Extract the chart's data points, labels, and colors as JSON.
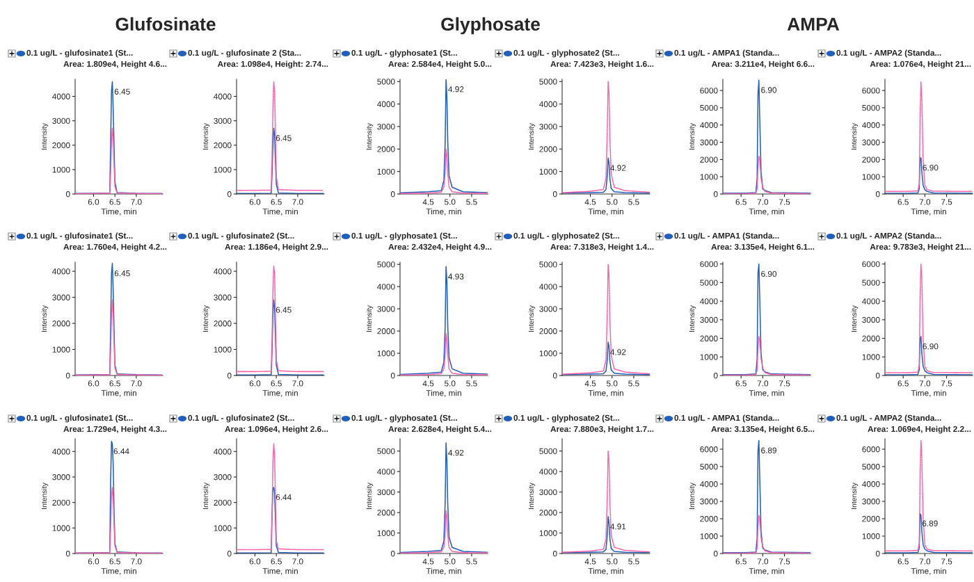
{
  "chart_data": [
    {
      "type": "line",
      "title": "0.1 ug/L - glufosinate1 (St...",
      "subtitle": "Area: 1.809e4, Height 4.6...",
      "xlabel": "Time, min",
      "ylabel": "Intensity",
      "xlim": [
        5.57,
        7.62
      ],
      "xticks": [
        {
          "value": 6.0,
          "label": "6.0"
        },
        {
          "value": 6.5,
          "label": "6.5"
        },
        {
          "value": 7.0,
          "label": "7.0"
        }
      ],
      "ylim": [
        0,
        4700
      ],
      "yticks": [
        0,
        1000,
        2000,
        3000,
        4000
      ],
      "grid": false,
      "series": [
        {
          "color": "#1f5fbf",
          "line_style": "solid",
          "x": [
            5.58,
            6.0,
            6.38,
            6.4,
            6.42,
            6.44,
            6.46,
            6.48,
            6.5,
            6.55,
            7.0,
            7.6
          ],
          "values": [
            20,
            30,
            40,
            2050,
            4200,
            4600,
            3500,
            2000,
            500,
            60,
            30,
            20
          ]
        },
        {
          "color": "#ff5fa8",
          "line_style": "dotted",
          "x": [
            5.58,
            6.0,
            6.38,
            6.4,
            6.42,
            6.44,
            6.46,
            6.48,
            6.5,
            6.55,
            7.0,
            7.6
          ],
          "values": [
            10,
            20,
            30,
            800,
            2000,
            2700,
            2300,
            1200,
            300,
            40,
            20,
            10
          ]
        }
      ],
      "annotations": [
        "Glufosinate",
        {
          "text": "6.45",
          "x": 6.44,
          "y": 4600
        }
      ]
    },
    {
      "type": "line",
      "title": "0.1 ug/L - glufosinate 2 (Sta...",
      "subtitle": "Area: 1.098e4, Height: 2.74...",
      "xlabel": "Time, min",
      "ylabel": "Intensity",
      "xlim": [
        5.57,
        7.62
      ],
      "xticks": [
        {
          "value": 6.0,
          "label": "6.0"
        },
        {
          "value": 6.5,
          "label": "6.5"
        },
        {
          "value": 7.0,
          "label": "7.0"
        }
      ],
      "ylim": [
        0,
        4700
      ],
      "yticks": [
        0,
        1000,
        2000,
        3000,
        4000
      ],
      "grid": false,
      "series": [
        {
          "color": "#1f5fbf",
          "line_style": "solid",
          "x": [
            5.58,
            6.0,
            6.38,
            6.4,
            6.42,
            6.44,
            6.46,
            6.48,
            6.5,
            6.55,
            7.0,
            7.6
          ],
          "values": [
            20,
            20,
            30,
            800,
            2000,
            2700,
            2400,
            1300,
            400,
            40,
            20,
            20
          ]
        },
        {
          "color": "#ff5fa8",
          "line_style": "dotted",
          "x": [
            5.58,
            6.0,
            6.38,
            6.4,
            6.42,
            6.44,
            6.46,
            6.48,
            6.5,
            6.55,
            7.0,
            7.6
          ],
          "values": [
            150,
            150,
            160,
            1500,
            3500,
            4600,
            4200,
            2500,
            700,
            180,
            150,
            150
          ]
        }
      ],
      "annotations": [
        {
          "text": "6.45",
          "x": 6.44,
          "y": 2700
        }
      ]
    },
    {
      "type": "line",
      "title": "0.1 ug/L - glyphosate1 (St...",
      "subtitle": "Area: 2.584e4, Height 5.0...",
      "xlabel": "Time, min",
      "ylabel": "Intensity",
      "xlim": [
        3.85,
        5.87
      ],
      "xticks": [
        {
          "value": 4.5,
          "label": "4.5"
        },
        {
          "value": 5.0,
          "label": "5.0"
        },
        {
          "value": 5.5,
          "label": "5.5"
        }
      ],
      "ylim": [
        0,
        5100
      ],
      "yticks": [
        0,
        1000,
        2000,
        3000,
        4000,
        5000
      ],
      "grid": false,
      "series": [
        {
          "color": "#1f5fbf",
          "line_style": "solid",
          "x": [
            3.86,
            4.5,
            4.8,
            4.86,
            4.89,
            4.91,
            4.93,
            4.95,
            4.98,
            5.05,
            5.3,
            5.86
          ],
          "values": [
            50,
            100,
            150,
            600,
            2300,
            5100,
            4300,
            2300,
            800,
            300,
            100,
            60
          ]
        },
        {
          "color": "#ff5fa8",
          "line_style": "dotted",
          "x": [
            3.86,
            4.5,
            4.8,
            4.86,
            4.89,
            4.91,
            4.93,
            4.95,
            4.98,
            5.05,
            5.3,
            5.86
          ],
          "values": [
            20,
            40,
            80,
            300,
            900,
            2000,
            1700,
            900,
            300,
            100,
            40,
            30
          ]
        }
      ],
      "annotations": [
        "Glyphosate",
        {
          "text": "4.92",
          "x": 4.91,
          "y": 5100
        }
      ]
    },
    {
      "type": "line",
      "title": "0.1 ug/L - glyphosate2 (St...",
      "subtitle": "Area: 7.423e3, Height 1.6...",
      "xlabel": "Time, min",
      "ylabel": "Intensity",
      "xlim": [
        3.85,
        5.87
      ],
      "xticks": [
        {
          "value": 4.5,
          "label": "4.5"
        },
        {
          "value": 5.0,
          "label": "5.0"
        },
        {
          "value": 5.5,
          "label": "5.5"
        }
      ],
      "ylim": [
        0,
        5100
      ],
      "yticks": [
        0,
        1000,
        2000,
        3000,
        4000,
        5000
      ],
      "grid": false,
      "series": [
        {
          "color": "#1f5fbf",
          "line_style": "solid",
          "x": [
            3.86,
            4.5,
            4.8,
            4.86,
            4.89,
            4.91,
            4.93,
            4.95,
            4.98,
            5.05,
            5.3,
            5.86
          ],
          "values": [
            40,
            60,
            80,
            200,
            800,
            1600,
            1400,
            700,
            250,
            100,
            60,
            40
          ]
        },
        {
          "color": "#ff5fa8",
          "line_style": "dotted",
          "x": [
            3.86,
            4.5,
            4.8,
            4.86,
            4.89,
            4.91,
            4.93,
            4.95,
            4.98,
            5.05,
            5.3,
            5.86
          ],
          "values": [
            60,
            120,
            200,
            700,
            2800,
            5000,
            4500,
            2500,
            900,
            300,
            150,
            80
          ]
        }
      ],
      "annotations": [
        {
          "text": "4.92",
          "x": 4.91,
          "y": 1600
        }
      ]
    },
    {
      "type": "line",
      "title": "0.1 ug/L - AMPA1 (Standa...",
      "subtitle": "Area: 3.211e4, Height 6.6...",
      "xlabel": "Time, min",
      "ylabel": "Intensity",
      "xlim": [
        6.08,
        8.1
      ],
      "xticks": [
        {
          "value": 6.5,
          "label": "6.5"
        },
        {
          "value": 7.0,
          "label": "7.0"
        },
        {
          "value": 7.5,
          "label": "7.5"
        }
      ],
      "ylim": [
        0,
        6650
      ],
      "yticks": [
        0,
        1000,
        2000,
        3000,
        4000,
        5000,
        6000
      ],
      "grid": false,
      "series": [
        {
          "color": "#1f5fbf",
          "line_style": "solid",
          "x": [
            6.09,
            6.6,
            6.84,
            6.87,
            6.89,
            6.91,
            6.93,
            6.96,
            7.0,
            7.05,
            7.2,
            8.09
          ],
          "values": [
            50,
            50,
            80,
            900,
            5800,
            6600,
            4400,
            1300,
            300,
            200,
            80,
            50
          ]
        },
        {
          "color": "#ff5fa8",
          "line_style": "dotted",
          "x": [
            6.09,
            6.6,
            6.84,
            6.87,
            6.89,
            6.91,
            6.93,
            6.96,
            7.0,
            7.05,
            7.2,
            8.09
          ],
          "values": [
            20,
            20,
            40,
            300,
            1500,
            2200,
            2000,
            900,
            400,
            150,
            50,
            20
          ]
        }
      ],
      "annotations": [
        "AMPA",
        {
          "text": "6.90",
          "x": 6.91,
          "y": 6600
        }
      ]
    },
    {
      "type": "line",
      "title": "0.1 ug/L - AMPA2 (Standa...",
      "subtitle": "Area: 1.076e4, Height 21...",
      "xlabel": "Time, min",
      "ylabel": "Intensity",
      "xlim": [
        6.08,
        8.1
      ],
      "xticks": [
        {
          "value": 6.5,
          "label": "6.5"
        },
        {
          "value": 7.0,
          "label": "7.0"
        },
        {
          "value": 7.5,
          "label": "7.5"
        }
      ],
      "ylim": [
        0,
        6650
      ],
      "yticks": [
        0,
        1000,
        2000,
        3000,
        4000,
        5000,
        6000
      ],
      "grid": false,
      "series": [
        {
          "color": "#1f5fbf",
          "line_style": "solid",
          "x": [
            6.09,
            6.6,
            6.84,
            6.87,
            6.89,
            6.91,
            6.93,
            6.96,
            7.0,
            7.05,
            7.2,
            8.09
          ],
          "values": [
            40,
            40,
            60,
            300,
            2100,
            2100,
            1300,
            500,
            250,
            150,
            60,
            40
          ]
        },
        {
          "color": "#ff5fa8",
          "line_style": "dotted",
          "x": [
            6.09,
            6.6,
            6.84,
            6.87,
            6.89,
            6.91,
            6.93,
            6.96,
            7.0,
            7.05,
            7.2,
            8.09
          ],
          "values": [
            150,
            150,
            180,
            600,
            4500,
            6500,
            5500,
            2000,
            500,
            250,
            160,
            150
          ]
        }
      ],
      "annotations": [
        {
          "text": "6.90",
          "x": 6.9,
          "y": 2100
        }
      ]
    },
    {
      "type": "line",
      "title": "0.1 ug/L - glufosinate1 (St...",
      "subtitle": "Area: 1.760e4, Height 4.2...",
      "xlabel": "Time, min",
      "ylabel": "Intensity",
      "xlim": [
        5.57,
        7.62
      ],
      "xticks": [
        {
          "value": 6.0,
          "label": "6.0"
        },
        {
          "value": 6.5,
          "label": "6.5"
        },
        {
          "value": 7.0,
          "label": "7.0"
        }
      ],
      "ylim": [
        0,
        4350
      ],
      "yticks": [
        0,
        1000,
        2000,
        3000,
        4000
      ],
      "grid": false,
      "series": [
        {
          "color": "#1f5fbf",
          "line_style": "solid",
          "x": [
            5.58,
            6.0,
            6.38,
            6.4,
            6.42,
            6.44,
            6.46,
            6.48,
            6.5,
            6.55,
            7.0,
            7.6
          ],
          "values": [
            20,
            30,
            40,
            1800,
            3900,
            4300,
            3300,
            1800,
            400,
            60,
            30,
            20
          ]
        },
        {
          "color": "#ff5fa8",
          "line_style": "dotted",
          "x": [
            5.58,
            6.0,
            6.38,
            6.4,
            6.42,
            6.44,
            6.46,
            6.48,
            6.5,
            6.55,
            7.0,
            7.6
          ],
          "values": [
            10,
            20,
            30,
            900,
            2200,
            2900,
            2400,
            1200,
            300,
            40,
            20,
            10
          ]
        }
      ],
      "annotations": [
        {
          "text": "6.45",
          "x": 6.44,
          "y": 4300
        }
      ]
    },
    {
      "type": "line",
      "title": "0.1 ug/L - glufosinate2 (St...",
      "subtitle": "Area: 1.186e4, Height 2.9...",
      "xlabel": "Time, min",
      "ylabel": "Intensity",
      "xlim": [
        5.57,
        7.62
      ],
      "xticks": [
        {
          "value": 6.0,
          "label": "6.0"
        },
        {
          "value": 6.5,
          "label": "6.5"
        },
        {
          "value": 7.0,
          "label": "7.0"
        }
      ],
      "ylim": [
        0,
        4350
      ],
      "yticks": [
        0,
        1000,
        2000,
        3000,
        4000
      ],
      "grid": false,
      "series": [
        {
          "color": "#1f5fbf",
          "line_style": "solid",
          "x": [
            5.58,
            6.0,
            6.38,
            6.4,
            6.42,
            6.44,
            6.46,
            6.48,
            6.5,
            6.55,
            7.0,
            7.6
          ],
          "values": [
            20,
            20,
            30,
            900,
            2300,
            2900,
            2600,
            1400,
            400,
            40,
            20,
            20
          ]
        },
        {
          "color": "#ff5fa8",
          "line_style": "dotted",
          "x": [
            5.58,
            6.0,
            6.38,
            6.4,
            6.42,
            6.44,
            6.46,
            6.48,
            6.5,
            6.55,
            7.0,
            7.6
          ],
          "values": [
            150,
            150,
            160,
            1400,
            3300,
            4200,
            3900,
            2300,
            600,
            180,
            150,
            150
          ]
        }
      ],
      "annotations": [
        {
          "text": "6.45",
          "x": 6.44,
          "y": 2900
        }
      ]
    },
    {
      "type": "line",
      "title": "0.1 ug/L - glyphosate1 (St...",
      "subtitle": "Area: 2.432e4, Height 4.9...",
      "xlabel": "Time, min",
      "ylabel": "Intensity",
      "xlim": [
        3.85,
        5.87
      ],
      "xticks": [
        {
          "value": 4.5,
          "label": "4.5"
        },
        {
          "value": 5.0,
          "label": "5.0"
        },
        {
          "value": 5.5,
          "label": "5.5"
        }
      ],
      "ylim": [
        0,
        5100
      ],
      "yticks": [
        0,
        1000,
        2000,
        3000,
        4000,
        5000
      ],
      "grid": false,
      "series": [
        {
          "color": "#1f5fbf",
          "line_style": "solid",
          "x": [
            3.86,
            4.5,
            4.8,
            4.86,
            4.89,
            4.91,
            4.93,
            4.95,
            4.98,
            5.05,
            5.3,
            5.86
          ],
          "values": [
            50,
            100,
            150,
            600,
            2200,
            4900,
            4200,
            2200,
            800,
            300,
            100,
            60
          ]
        },
        {
          "color": "#ff5fa8",
          "line_style": "dotted",
          "x": [
            3.86,
            4.5,
            4.8,
            4.86,
            4.89,
            4.91,
            4.93,
            4.95,
            4.98,
            5.05,
            5.3,
            5.86
          ],
          "values": [
            20,
            40,
            80,
            300,
            900,
            1900,
            1600,
            900,
            300,
            100,
            40,
            30
          ]
        }
      ],
      "annotations": [
        {
          "text": "4.93",
          "x": 4.91,
          "y": 4900
        }
      ]
    },
    {
      "type": "line",
      "title": "0.1 ug/L - glyphosate2 (St...",
      "subtitle": "Area: 7.318e3, Height 1.4...",
      "xlabel": "Time, min",
      "ylabel": "Intensity",
      "xlim": [
        3.85,
        5.87
      ],
      "xticks": [
        {
          "value": 4.5,
          "label": "4.5"
        },
        {
          "value": 5.0,
          "label": "5.0"
        },
        {
          "value": 5.5,
          "label": "5.5"
        }
      ],
      "ylim": [
        0,
        5100
      ],
      "yticks": [
        0,
        1000,
        2000,
        3000,
        4000,
        5000
      ],
      "grid": false,
      "series": [
        {
          "color": "#1f5fbf",
          "line_style": "solid",
          "x": [
            3.86,
            4.5,
            4.8,
            4.86,
            4.89,
            4.91,
            4.93,
            4.95,
            4.98,
            5.05,
            5.3,
            5.86
          ],
          "values": [
            40,
            60,
            80,
            200,
            700,
            1500,
            1300,
            650,
            250,
            100,
            60,
            40
          ]
        },
        {
          "color": "#ff5fa8",
          "line_style": "dotted",
          "x": [
            3.86,
            4.5,
            4.8,
            4.86,
            4.89,
            4.91,
            4.93,
            4.95,
            4.98,
            5.05,
            5.3,
            5.86
          ],
          "values": [
            60,
            120,
            200,
            700,
            2800,
            5000,
            4500,
            2500,
            900,
            300,
            150,
            80
          ]
        }
      ],
      "annotations": [
        {
          "text": "4.92",
          "x": 4.91,
          "y": 1500
        }
      ]
    },
    {
      "type": "line",
      "title": "0.1 ug/L - AMPA1 (Standa...",
      "subtitle": "Area: 3.135e4, Height 6.1...",
      "xlabel": "Time, min",
      "ylabel": "Intensity",
      "xlim": [
        6.08,
        8.1
      ],
      "xticks": [
        {
          "value": 6.5,
          "label": "6.5"
        },
        {
          "value": 7.0,
          "label": "7.0"
        },
        {
          "value": 7.5,
          "label": "7.5"
        }
      ],
      "ylim": [
        0,
        6100
      ],
      "yticks": [
        0,
        1000,
        2000,
        3000,
        4000,
        5000,
        6000
      ],
      "grid": false,
      "series": [
        {
          "color": "#1f5fbf",
          "line_style": "solid",
          "x": [
            6.09,
            6.6,
            6.84,
            6.87,
            6.89,
            6.91,
            6.93,
            6.96,
            7.0,
            7.05,
            7.2,
            8.09
          ],
          "values": [
            50,
            50,
            80,
            900,
            5500,
            6000,
            4200,
            1200,
            300,
            200,
            80,
            50
          ]
        },
        {
          "color": "#ff5fa8",
          "line_style": "dotted",
          "x": [
            6.09,
            6.6,
            6.84,
            6.87,
            6.89,
            6.91,
            6.93,
            6.96,
            7.0,
            7.05,
            7.2,
            8.09
          ],
          "values": [
            20,
            20,
            40,
            300,
            1400,
            2100,
            1900,
            900,
            400,
            150,
            50,
            20
          ]
        }
      ],
      "annotations": [
        {
          "text": "6.90",
          "x": 6.91,
          "y": 6000
        }
      ]
    },
    {
      "type": "line",
      "title": "0.1 ug/L - AMPA2 (Standa...",
      "subtitle": "Area: 9.783e3, Height 21...",
      "xlabel": "Time, min",
      "ylabel": "Intensity",
      "xlim": [
        6.08,
        8.1
      ],
      "xticks": [
        {
          "value": 6.5,
          "label": "6.5"
        },
        {
          "value": 7.0,
          "label": "7.0"
        },
        {
          "value": 7.5,
          "label": "7.5"
        }
      ],
      "ylim": [
        0,
        6100
      ],
      "yticks": [
        0,
        1000,
        2000,
        3000,
        4000,
        5000,
        6000
      ],
      "grid": false,
      "series": [
        {
          "color": "#1f5fbf",
          "line_style": "solid",
          "x": [
            6.09,
            6.6,
            6.84,
            6.87,
            6.89,
            6.91,
            6.93,
            6.96,
            7.0,
            7.05,
            7.2,
            8.09
          ],
          "values": [
            40,
            40,
            60,
            300,
            2000,
            2100,
            1200,
            500,
            250,
            150,
            60,
            40
          ]
        },
        {
          "color": "#ff5fa8",
          "line_style": "dotted",
          "x": [
            6.09,
            6.6,
            6.84,
            6.87,
            6.89,
            6.91,
            6.93,
            6.96,
            7.0,
            7.05,
            7.2,
            8.09
          ],
          "values": [
            150,
            150,
            180,
            600,
            4200,
            6000,
            5200,
            1900,
            500,
            250,
            160,
            150
          ]
        }
      ],
      "annotations": [
        {
          "text": "6.90",
          "x": 6.9,
          "y": 2100
        }
      ]
    },
    {
      "type": "line",
      "title": "0.1 ug/L - glufosinate1 (St...",
      "subtitle": "Area: 1.729e4, Height 4.3...",
      "xlabel": "Time, min",
      "ylabel": "Intensity",
      "xlim": [
        5.57,
        7.62
      ],
      "xticks": [
        {
          "value": 6.0,
          "label": "6.0"
        },
        {
          "value": 6.5,
          "label": "6.5"
        },
        {
          "value": 7.0,
          "label": "7.0"
        }
      ],
      "ylim": [
        0,
        4500
      ],
      "yticks": [
        0,
        1000,
        2000,
        3000,
        4000
      ],
      "grid": false,
      "series": [
        {
          "color": "#1f5fbf",
          "line_style": "solid",
          "x": [
            5.58,
            6.0,
            6.38,
            6.4,
            6.42,
            6.44,
            6.46,
            6.48,
            6.5,
            6.55,
            7.0,
            7.6
          ],
          "values": [
            20,
            30,
            40,
            2800,
            4400,
            4300,
            3500,
            1700,
            400,
            60,
            30,
            20
          ]
        },
        {
          "color": "#ff5fa8",
          "line_style": "dotted",
          "x": [
            5.58,
            6.0,
            6.38,
            6.4,
            6.42,
            6.44,
            6.46,
            6.48,
            6.5,
            6.55,
            7.0,
            7.6
          ],
          "values": [
            10,
            20,
            30,
            900,
            2200,
            2600,
            2200,
            1100,
            300,
            40,
            20,
            10
          ]
        }
      ],
      "annotations": [
        {
          "text": "6.44",
          "x": 6.42,
          "y": 4400
        }
      ]
    },
    {
      "type": "line",
      "title": "0.1 ug/L - glufosinate2 (St...",
      "subtitle": "Area: 1.096e4, Height 2.6...",
      "xlabel": "Time, min",
      "ylabel": "Intensity",
      "xlim": [
        5.57,
        7.62
      ],
      "xticks": [
        {
          "value": 6.0,
          "label": "6.0"
        },
        {
          "value": 6.5,
          "label": "6.5"
        },
        {
          "value": 7.0,
          "label": "7.0"
        }
      ],
      "ylim": [
        0,
        4500
      ],
      "yticks": [
        0,
        1000,
        2000,
        3000,
        4000
      ],
      "grid": false,
      "series": [
        {
          "color": "#1f5fbf",
          "line_style": "solid",
          "x": [
            5.58,
            6.0,
            6.38,
            6.4,
            6.42,
            6.44,
            6.46,
            6.48,
            6.5,
            6.55,
            7.0,
            7.6
          ],
          "values": [
            20,
            20,
            30,
            1500,
            2500,
            2600,
            2400,
            1300,
            300,
            40,
            20,
            20
          ]
        },
        {
          "color": "#ff5fa8",
          "line_style": "dotted",
          "x": [
            5.58,
            6.0,
            6.38,
            6.4,
            6.42,
            6.44,
            6.46,
            6.48,
            6.5,
            6.55,
            7.0,
            7.6
          ],
          "values": [
            150,
            150,
            160,
            1500,
            3600,
            4300,
            3800,
            2200,
            500,
            180,
            150,
            150
          ]
        }
      ],
      "annotations": [
        {
          "text": "6.44",
          "x": 6.44,
          "y": 2600
        }
      ]
    },
    {
      "type": "line",
      "title": "0.1 ug/L - glyphosate1 (St...",
      "subtitle": "Area: 2.628e4, Height 5.4...",
      "xlabel": "Time, min",
      "ylabel": "Intensity",
      "xlim": [
        3.85,
        5.87
      ],
      "xticks": [
        {
          "value": 4.5,
          "label": "4.5"
        },
        {
          "value": 5.0,
          "label": "5.0"
        },
        {
          "value": 5.5,
          "label": "5.5"
        }
      ],
      "ylim": [
        0,
        5600
      ],
      "yticks": [
        0,
        1000,
        2000,
        3000,
        4000,
        5000
      ],
      "grid": false,
      "series": [
        {
          "color": "#1f5fbf",
          "line_style": "solid",
          "x": [
            3.86,
            4.5,
            4.8,
            4.86,
            4.89,
            4.91,
            4.93,
            4.95,
            4.98,
            5.05,
            5.3,
            5.86
          ],
          "values": [
            50,
            100,
            150,
            600,
            2500,
            5400,
            4500,
            2400,
            800,
            300,
            100,
            60
          ]
        },
        {
          "color": "#ff5fa8",
          "line_style": "dotted",
          "x": [
            3.86,
            4.5,
            4.8,
            4.86,
            4.89,
            4.91,
            4.93,
            4.95,
            4.98,
            5.05,
            5.3,
            5.86
          ],
          "values": [
            20,
            40,
            80,
            300,
            900,
            2100,
            1800,
            900,
            300,
            100,
            40,
            30
          ]
        }
      ],
      "annotations": [
        {
          "text": "4.92",
          "x": 4.91,
          "y": 5400
        }
      ]
    },
    {
      "type": "line",
      "title": "0.1 ug/L - glyphosate2 (St...",
      "subtitle": "Area: 7.880e3, Height 1.7...",
      "xlabel": "Time, min",
      "ylabel": "Intensity",
      "xlim": [
        3.85,
        5.87
      ],
      "xticks": [
        {
          "value": 4.5,
          "label": "4.5"
        },
        {
          "value": 5.0,
          "label": "5.0"
        },
        {
          "value": 5.5,
          "label": "5.5"
        }
      ],
      "ylim": [
        0,
        5600
      ],
      "yticks": [
        0,
        1000,
        2000,
        3000,
        4000,
        5000
      ],
      "grid": false,
      "series": [
        {
          "color": "#1f5fbf",
          "line_style": "solid",
          "x": [
            3.86,
            4.5,
            4.8,
            4.86,
            4.89,
            4.91,
            4.93,
            4.95,
            4.98,
            5.05,
            5.3,
            5.86
          ],
          "values": [
            40,
            60,
            80,
            200,
            900,
            1800,
            1500,
            750,
            250,
            100,
            60,
            40
          ]
        },
        {
          "color": "#ff5fa8",
          "line_style": "dotted",
          "x": [
            3.86,
            4.5,
            4.8,
            4.86,
            4.89,
            4.91,
            4.93,
            4.95,
            4.98,
            5.05,
            5.3,
            5.86
          ],
          "values": [
            60,
            120,
            200,
            700,
            2800,
            5000,
            4500,
            2500,
            900,
            300,
            150,
            80
          ]
        }
      ],
      "annotations": [
        {
          "text": "4.91",
          "x": 4.91,
          "y": 1800
        }
      ]
    },
    {
      "type": "line",
      "title": "0.1 ug/L - AMPA1 (Standa...",
      "subtitle": "Area: 3.135e4, Height 6.5...",
      "xlabel": "Time, min",
      "ylabel": "Intensity",
      "xlim": [
        6.08,
        8.1
      ],
      "xticks": [
        {
          "value": 6.5,
          "label": "6.5"
        },
        {
          "value": 7.0,
          "label": "7.0"
        },
        {
          "value": 7.5,
          "label": "7.5"
        }
      ],
      "ylim": [
        0,
        6600
      ],
      "yticks": [
        0,
        1000,
        2000,
        3000,
        4000,
        5000,
        6000
      ],
      "grid": false,
      "series": [
        {
          "color": "#1f5fbf",
          "line_style": "solid",
          "x": [
            6.09,
            6.6,
            6.84,
            6.87,
            6.89,
            6.91,
            6.93,
            6.96,
            7.0,
            7.05,
            7.2,
            8.09
          ],
          "values": [
            50,
            50,
            80,
            900,
            5900,
            6500,
            4400,
            1300,
            300,
            200,
            80,
            50
          ]
        },
        {
          "color": "#ff5fa8",
          "line_style": "dotted",
          "x": [
            6.09,
            6.6,
            6.84,
            6.87,
            6.89,
            6.91,
            6.93,
            6.96,
            7.0,
            7.05,
            7.2,
            8.09
          ],
          "values": [
            20,
            20,
            40,
            300,
            1500,
            2200,
            2000,
            900,
            400,
            150,
            50,
            20
          ]
        }
      ],
      "annotations": [
        {
          "text": "6.89",
          "x": 6.91,
          "y": 6500
        }
      ]
    },
    {
      "type": "line",
      "title": "0.1 ug/L - AMPA2 (Standa...",
      "subtitle": "Area: 1.069e4, Height 2.2...",
      "xlabel": "Time, min",
      "ylabel": "Intensity",
      "xlim": [
        6.08,
        8.1
      ],
      "xticks": [
        {
          "value": 6.5,
          "label": "6.5"
        },
        {
          "value": 7.0,
          "label": "7.0"
        },
        {
          "value": 7.5,
          "label": "7.5"
        }
      ],
      "ylim": [
        0,
        6600
      ],
      "yticks": [
        0,
        1000,
        2000,
        3000,
        4000,
        5000,
        6000
      ],
      "grid": false,
      "series": [
        {
          "color": "#1f5fbf",
          "line_style": "solid",
          "x": [
            6.09,
            6.6,
            6.84,
            6.87,
            6.89,
            6.91,
            6.93,
            6.96,
            7.0,
            7.05,
            7.2,
            8.09
          ],
          "values": [
            40,
            40,
            60,
            300,
            2300,
            2200,
            1300,
            500,
            250,
            150,
            60,
            40
          ]
        },
        {
          "color": "#ff5fa8",
          "line_style": "dotted",
          "x": [
            6.09,
            6.6,
            6.84,
            6.87,
            6.89,
            6.91,
            6.93,
            6.96,
            7.0,
            7.05,
            7.2,
            8.09
          ],
          "values": [
            150,
            150,
            180,
            600,
            4500,
            6500,
            5500,
            2000,
            500,
            250,
            160,
            150
          ]
        }
      ],
      "annotations": [
        {
          "text": "6.89",
          "x": 6.89,
          "y": 2300
        }
      ]
    }
  ]
}
